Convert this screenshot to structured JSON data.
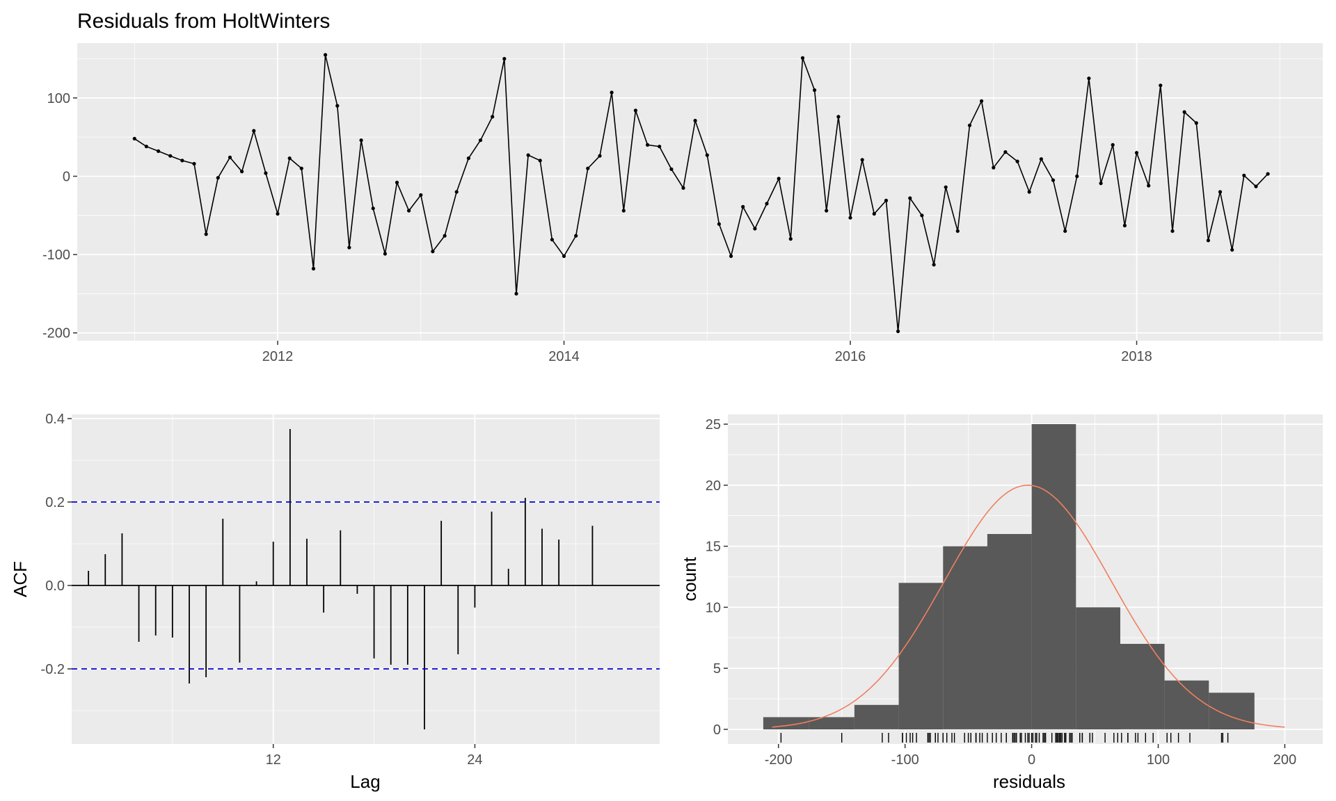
{
  "title": "Residuals from HoltWinters",
  "chart_data": [
    {
      "type": "line",
      "title": "Residuals from HoltWinters",
      "xlabel": "",
      "ylabel": "",
      "x_ticks": [
        2012,
        2014,
        2016,
        2018
      ],
      "x_tick_labels": [
        "2012",
        "2014",
        "2016",
        "2018"
      ],
      "y_ticks": [
        -200,
        -100,
        0,
        100
      ],
      "y_tick_labels": [
        "-200",
        "-100",
        "0",
        "100"
      ],
      "xlim": [
        2010.6,
        2019.3
      ],
      "ylim": [
        -210,
        170
      ],
      "grid": true,
      "x_start": 2011.0,
      "x_step": 0.0833333,
      "values": [
        48,
        38,
        32,
        26,
        20,
        16,
        -74,
        -2,
        24,
        6,
        58,
        4,
        -48,
        23,
        10,
        -118,
        155,
        90,
        -91,
        46,
        -41,
        -99,
        -8,
        -44,
        -24,
        -96,
        -76,
        -20,
        23,
        46,
        76,
        150,
        -150,
        27,
        20,
        -81,
        -102,
        -76,
        10,
        26,
        107,
        -44,
        84,
        40,
        38,
        9,
        -15,
        71,
        27,
        -61,
        -102,
        -39,
        -67,
        -35,
        -3,
        -80,
        151,
        110,
        -44,
        76,
        -53,
        21,
        -48,
        -31,
        -198,
        -28,
        -50,
        -113,
        -14,
        -70,
        65,
        96,
        11,
        31,
        19,
        -20,
        22,
        -5,
        -70,
        0,
        125,
        -9,
        40,
        -63,
        30,
        -12,
        116,
        -70,
        82,
        68,
        -82,
        -20,
        -94,
        1,
        -13,
        3
      ]
    },
    {
      "type": "bar",
      "title": "",
      "xlabel": "Lag",
      "ylabel": "ACF",
      "x_ticks": [
        12,
        24
      ],
      "x_tick_labels": [
        "12",
        "24"
      ],
      "y_ticks": [
        -0.2,
        0.0,
        0.2,
        0.4
      ],
      "y_tick_labels": [
        "-0.2",
        "0.0",
        "0.2",
        "0.4"
      ],
      "xlim": [
        0.0,
        35.0
      ],
      "ylim": [
        -0.38,
        0.41
      ],
      "grid": true,
      "lags": [
        1,
        2,
        3,
        4,
        5,
        6,
        7,
        8,
        9,
        10,
        11,
        12,
        13,
        14,
        15,
        16,
        17,
        18,
        19,
        20,
        21,
        22,
        23,
        24,
        25,
        26,
        27,
        28,
        29,
        30,
        31,
        32,
        33
      ],
      "values": [
        0.035,
        0.075,
        0.125,
        -0.135,
        -0.12,
        -0.125,
        -0.235,
        -0.22,
        0.16,
        -0.185,
        0.01,
        0.105,
        0.375,
        0.112,
        -0.065,
        0.132,
        -0.02,
        -0.175,
        -0.19,
        -0.19,
        -0.345,
        0.155,
        -0.165,
        -0.053,
        0.177,
        0.04,
        0.21,
        0.136,
        0.11,
        0.0,
        0.143,
        0.0,
        0.0
      ],
      "confidence_limit": 0.2,
      "confidence_color": "#0000cc"
    },
    {
      "type": "histogram",
      "title": "",
      "xlabel": "residuals",
      "ylabel": "count",
      "x_ticks": [
        -200,
        -100,
        0,
        100,
        200
      ],
      "x_tick_labels": [
        "-200",
        "-100",
        "0",
        "100",
        "200"
      ],
      "y_ticks": [
        0,
        5,
        10,
        15,
        20,
        25
      ],
      "y_tick_labels": [
        "0",
        "5",
        "10",
        "15",
        "20",
        "25"
      ],
      "xlim": [
        -240,
        230
      ],
      "ylim": [
        -1.2,
        25.8
      ],
      "grid": true,
      "bin_edges": [
        -212,
        -176,
        -140,
        -105,
        -70,
        -35,
        0,
        35,
        70,
        105,
        140,
        176
      ],
      "counts": [
        1,
        1,
        2,
        12,
        15,
        16,
        25,
        10,
        7,
        4,
        3
      ],
      "bar_color": "#595959",
      "density_curve": {
        "mean": -3,
        "sd": 66,
        "peak": 20,
        "x_range": [
          -205,
          200
        ],
        "color": "#f08060"
      },
      "rug": [
        -198,
        -150,
        -118,
        -113,
        -102,
        -102,
        -99,
        -96,
        -94,
        -91,
        -82,
        -81,
        -80,
        -76,
        -76,
        -74,
        -70,
        -70,
        -67,
        -63,
        -61,
        -53,
        -50,
        -48,
        -48,
        -44,
        -44,
        -44,
        -41,
        -39,
        -35,
        -31,
        -28,
        -24,
        -20,
        -20,
        -15,
        -14,
        -13,
        -12,
        -9,
        -8,
        -5,
        -3,
        -2,
        0,
        1,
        3,
        4,
        6,
        9,
        10,
        10,
        11,
        16,
        19,
        20,
        20,
        21,
        22,
        23,
        23,
        24,
        26,
        26,
        27,
        27,
        30,
        31,
        32,
        38,
        38,
        40,
        40,
        46,
        46,
        48,
        58,
        65,
        68,
        71,
        76,
        76,
        82,
        84,
        90,
        96,
        107,
        110,
        116,
        125,
        150,
        151,
        155
      ]
    }
  ]
}
